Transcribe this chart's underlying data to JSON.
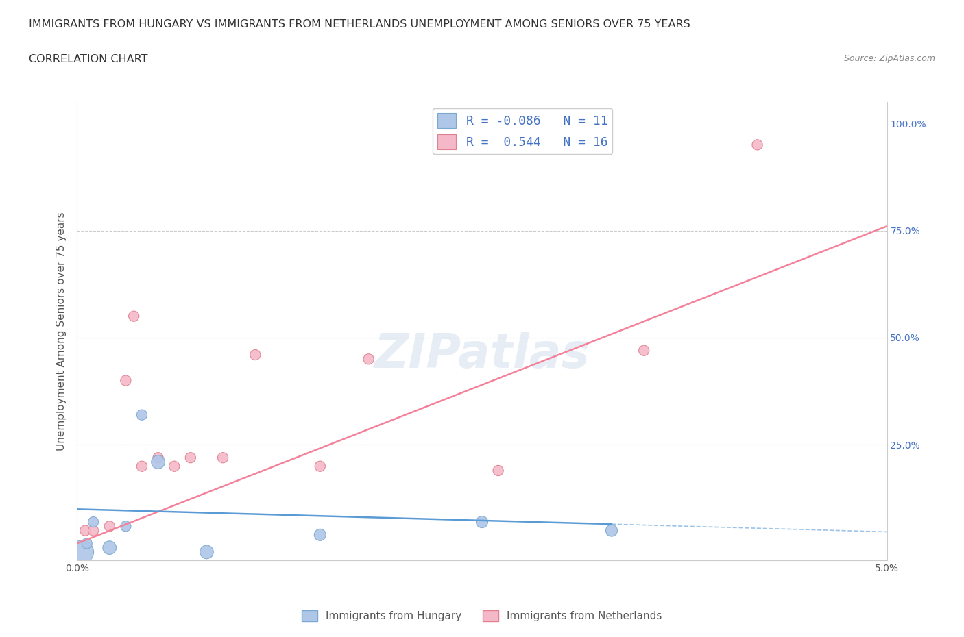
{
  "title_line1": "IMMIGRANTS FROM HUNGARY VS IMMIGRANTS FROM NETHERLANDS UNEMPLOYMENT AMONG SENIORS OVER 75 YEARS",
  "title_line2": "CORRELATION CHART",
  "source_text": "Source: ZipAtlas.com",
  "ylabel": "Unemployment Among Seniors over 75 years",
  "xlim": [
    0.0,
    0.05
  ],
  "ylim": [
    -0.02,
    1.05
  ],
  "x_ticks": [
    0.0,
    0.005,
    0.01,
    0.015,
    0.02,
    0.025,
    0.03,
    0.035,
    0.04,
    0.045,
    0.05
  ],
  "x_tick_labels": [
    "0.0%",
    "",
    "",
    "",
    "",
    "",
    "",
    "",
    "",
    "",
    "5.0%"
  ],
  "y_ticks": [
    0.0,
    0.25,
    0.5,
    0.75,
    1.0
  ],
  "y_tick_labels": [
    "",
    "25.0%",
    "50.0%",
    "75.0%",
    "100.0%"
  ],
  "hungary_color": "#aec6e8",
  "hungary_edge_color": "#7aa8d2",
  "netherlands_color": "#f4b8c8",
  "netherlands_edge_color": "#e08090",
  "hungary_line_color": "#5b9bd5",
  "netherlands_line_color": "#f4819a",
  "legend_hungary_label": "R = -0.086   N = 11",
  "legend_netherlands_label": "R =  0.544   N = 16",
  "hungary_x": [
    0.0003,
    0.0006,
    0.001,
    0.002,
    0.003,
    0.004,
    0.005,
    0.008,
    0.015,
    0.025,
    0.033
  ],
  "hungary_y": [
    0.0,
    0.02,
    0.07,
    0.01,
    0.06,
    0.32,
    0.21,
    0.0,
    0.04,
    0.07,
    0.05
  ],
  "hungary_sizes": [
    600,
    120,
    120,
    200,
    120,
    120,
    200,
    200,
    150,
    150,
    150
  ],
  "netherlands_x": [
    0.0005,
    0.001,
    0.002,
    0.003,
    0.0035,
    0.004,
    0.005,
    0.006,
    0.007,
    0.009,
    0.011,
    0.015,
    0.018,
    0.026,
    0.035,
    0.042
  ],
  "netherlands_y": [
    0.05,
    0.05,
    0.06,
    0.4,
    0.55,
    0.2,
    0.22,
    0.2,
    0.22,
    0.22,
    0.46,
    0.2,
    0.45,
    0.19,
    0.47,
    0.95
  ],
  "netherlands_sizes": [
    120,
    120,
    120,
    120,
    120,
    120,
    120,
    120,
    120,
    120,
    120,
    120,
    120,
    120,
    120,
    120
  ],
  "hungary_line_x0": 0.0,
  "hungary_line_y0": 0.1,
  "hungary_line_x1": 0.033,
  "hungary_line_y1": 0.065,
  "neth_line_x0": 0.0,
  "neth_line_y0": 0.02,
  "neth_line_x1": 0.05,
  "neth_line_y1": 0.76,
  "dashed_line_y": 0.02,
  "dashed_line_xstart": 0.033,
  "watermark": "ZIPatlas",
  "grid_color": "#cccccc",
  "background_color": "#ffffff"
}
